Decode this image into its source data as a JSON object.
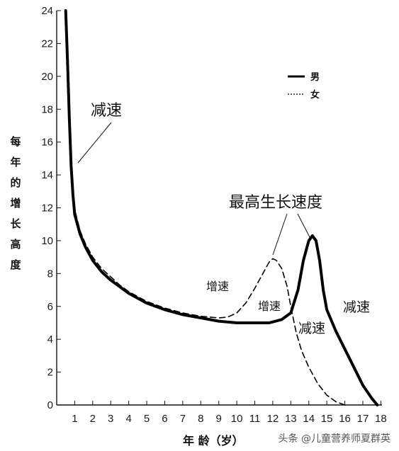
{
  "chart_data": {
    "type": "line",
    "title": "",
    "xlabel": "年 龄（岁）",
    "ylabel": "每年的增长高度",
    "xlim": [
      0,
      18.3
    ],
    "ylim": [
      0,
      24
    ],
    "xticks": [
      1,
      2,
      3,
      4,
      5,
      6,
      7,
      8,
      9,
      10,
      11,
      12,
      13,
      14,
      15,
      16,
      17,
      18
    ],
    "yticks": [
      0,
      2,
      4,
      6,
      8,
      10,
      12,
      14,
      16,
      18,
      20,
      22,
      24
    ],
    "grid": false,
    "legend": "top-right",
    "series": [
      {
        "name": "男",
        "style": "solid",
        "color": "#000000",
        "x": [
          0.5,
          0.6,
          0.7,
          0.8,
          0.9,
          1.0,
          1.3,
          1.6,
          2.0,
          2.5,
          3.0,
          3.5,
          4.0,
          5.0,
          6.0,
          7.0,
          8.0,
          9.0,
          10.0,
          11.0,
          11.8,
          12.5,
          13.0,
          13.4,
          13.7,
          14.0,
          14.2,
          14.4,
          14.6,
          14.8,
          15.0,
          15.5,
          16.0,
          16.5,
          17.0,
          17.5,
          17.8
        ],
        "y": [
          24.0,
          21.0,
          17.5,
          14.6,
          12.8,
          11.6,
          10.4,
          9.6,
          8.8,
          8.1,
          7.6,
          7.2,
          6.8,
          6.2,
          5.8,
          5.5,
          5.3,
          5.1,
          5.0,
          5.0,
          5.0,
          5.2,
          5.6,
          7.0,
          8.8,
          10.0,
          10.3,
          10.0,
          8.8,
          7.0,
          5.8,
          4.5,
          3.4,
          2.3,
          1.2,
          0.4,
          0.0
        ]
      },
      {
        "name": "女",
        "style": "dashed",
        "color": "#000000",
        "x": [
          0.5,
          0.6,
          0.7,
          0.8,
          0.9,
          1.0,
          1.3,
          1.6,
          2.0,
          2.5,
          3.0,
          3.5,
          4.0,
          5.0,
          6.0,
          7.0,
          8.0,
          9.0,
          9.5,
          10.0,
          10.5,
          11.0,
          11.5,
          11.8,
          12.0,
          12.2,
          12.5,
          12.8,
          13.0,
          13.3,
          13.6,
          14.0,
          14.5,
          15.0,
          15.5,
          16.0
        ],
        "y": [
          24.0,
          21.5,
          18.0,
          15.0,
          13.1,
          11.9,
          10.6,
          9.8,
          9.0,
          8.3,
          7.8,
          7.3,
          6.9,
          6.3,
          5.9,
          5.6,
          5.4,
          5.3,
          5.35,
          5.6,
          6.2,
          7.1,
          8.1,
          8.7,
          8.9,
          8.8,
          8.3,
          7.2,
          6.0,
          4.4,
          3.3,
          2.3,
          1.3,
          0.6,
          0.2,
          0.0
        ]
      }
    ],
    "annotations": {
      "decel_left": "减速",
      "peak": "最高生长速度",
      "accel_girl": "增速",
      "accel_boy": "增速",
      "decel_girl": "减速",
      "decel_boy": "减速"
    }
  },
  "watermark": "头条 @儿童营养师夏群英"
}
